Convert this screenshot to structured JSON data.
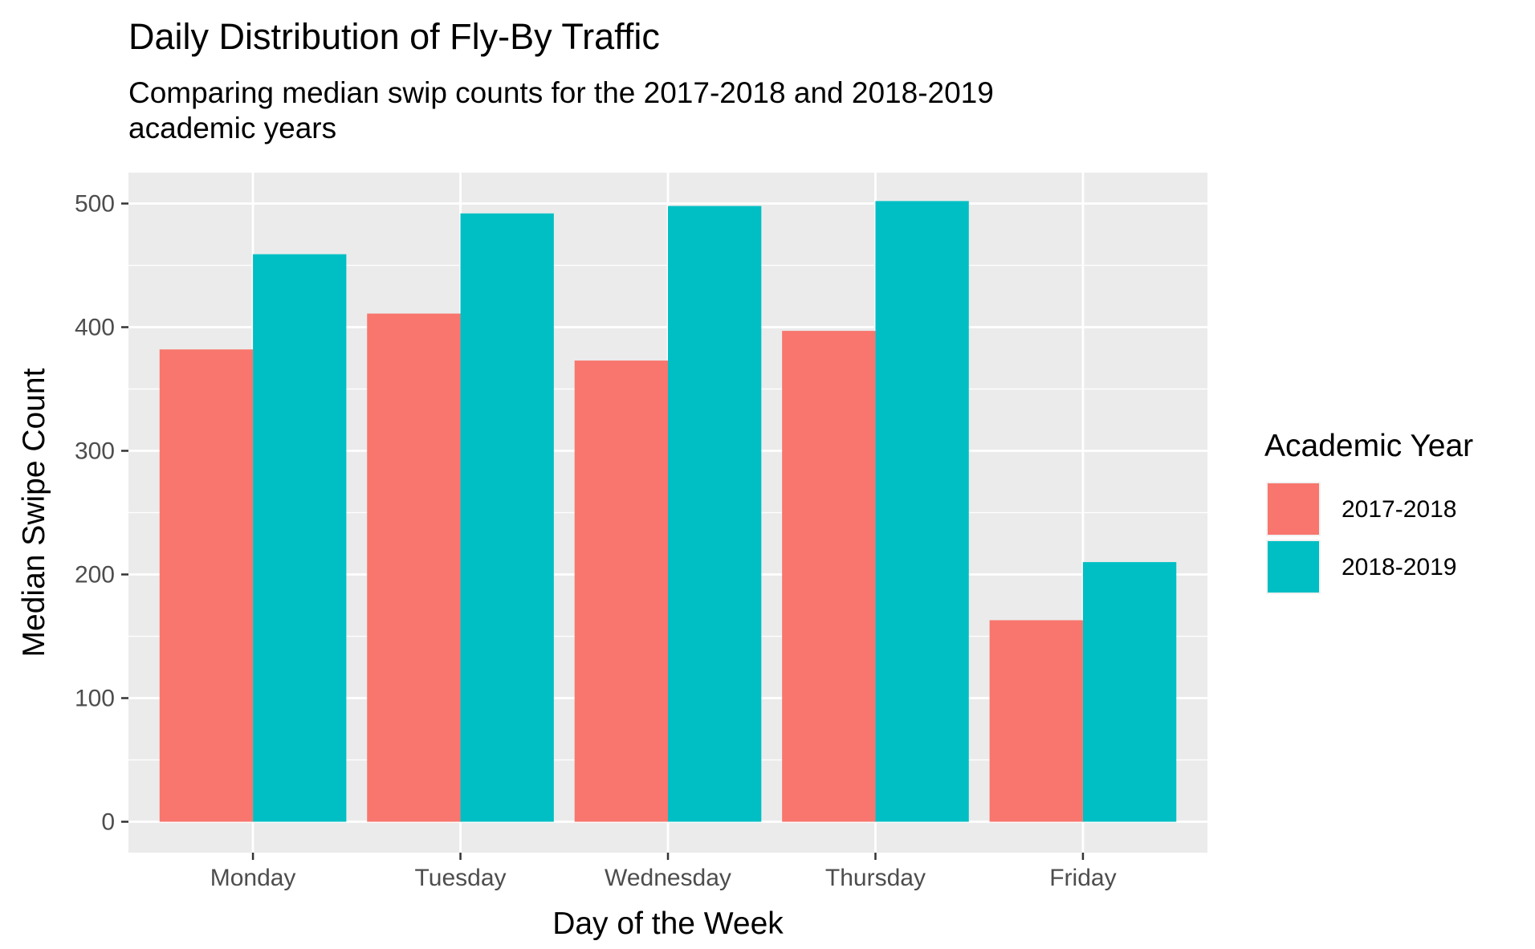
{
  "chart_data": {
    "type": "bar",
    "title": "Daily Distribution of Fly-By Traffic",
    "subtitle_lines": [
      "Comparing median swip counts for the 2017-2018 and 2018-2019",
      "academic years"
    ],
    "xlabel": "Day of the Week",
    "ylabel": "Median Swipe Count",
    "categories": [
      "Monday",
      "Tuesday",
      "Wednesday",
      "Thursday",
      "Friday"
    ],
    "series": [
      {
        "name": "2017-2018",
        "color": "#F8766D",
        "values": [
          382,
          411,
          373,
          397,
          163
        ]
      },
      {
        "name": "2018-2019",
        "color": "#00BFC4",
        "values": [
          459,
          492,
          498,
          502,
          210
        ]
      }
    ],
    "y_ticks": [
      0,
      100,
      200,
      300,
      400,
      500
    ],
    "y_tick_labels": [
      "0",
      "100",
      "200",
      "300",
      "400",
      "500"
    ],
    "ylim": [
      -25,
      525
    ],
    "grid": true,
    "panel_background": "#EBEBEB",
    "legend": {
      "title": "Academic Year",
      "position": "right"
    }
  }
}
